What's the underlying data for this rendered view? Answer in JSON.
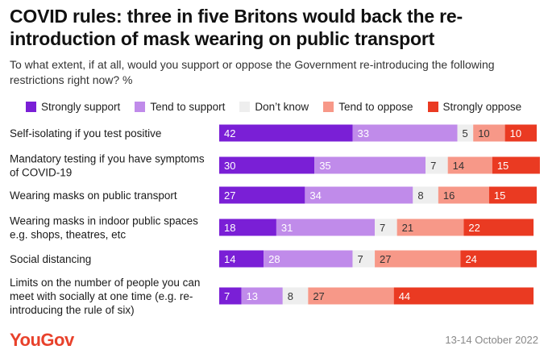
{
  "title": "COVID rules: three in five Britons would back the re-introduction of mask wearing on public transport",
  "subtitle": "To what extent, if at all, would you support or oppose the Government re-introducing the following restrictions right now? %",
  "source": "YouGov",
  "date": "13-14 October 2022",
  "legend": [
    {
      "label": "Strongly support",
      "color": "#7a1fd6"
    },
    {
      "label": "Tend to support",
      "color": "#c08bea"
    },
    {
      "label": "Don’t know",
      "color": "#eeeeee"
    },
    {
      "label": "Tend to oppose",
      "color": "#f79888"
    },
    {
      "label": "Strongly oppose",
      "color": "#ea3a22"
    }
  ],
  "chart_data": {
    "type": "bar",
    "stacked": true,
    "orientation": "horizontal",
    "categories": [
      [
        "Self-isolating if you test positive"
      ],
      [
        "Mandatory testing if you have symptoms",
        "of COVID-19"
      ],
      [
        "Wearing masks on public transport"
      ],
      [
        "Wearing masks in indoor public spaces",
        "e.g. shops, theatres, etc"
      ],
      [
        "Social distancing"
      ],
      [
        "Limits on the number of people you can",
        "meet with socially at one time (e.g. re-",
        "introducing the rule of six)"
      ]
    ],
    "series": [
      {
        "name": "Strongly support",
        "color": "#7a1fd6",
        "text_color": "#ffffff",
        "values": [
          42,
          30,
          27,
          18,
          14,
          7
        ]
      },
      {
        "name": "Tend to support",
        "color": "#c08bea",
        "text_color": "#ffffff",
        "values": [
          33,
          35,
          34,
          31,
          28,
          13
        ]
      },
      {
        "name": "Don’t know",
        "color": "#eeeeee",
        "text_color": "#333333",
        "values": [
          5,
          7,
          8,
          7,
          7,
          8
        ]
      },
      {
        "name": "Tend to oppose",
        "color": "#f79888",
        "text_color": "#333333",
        "values": [
          10,
          14,
          16,
          21,
          27,
          27
        ]
      },
      {
        "name": "Strongly oppose",
        "color": "#ea3a22",
        "text_color": "#ffffff",
        "values": [
          10,
          15,
          15,
          22,
          24,
          44
        ]
      }
    ],
    "xlim": [
      0,
      100
    ],
    "legend_position": "top"
  }
}
